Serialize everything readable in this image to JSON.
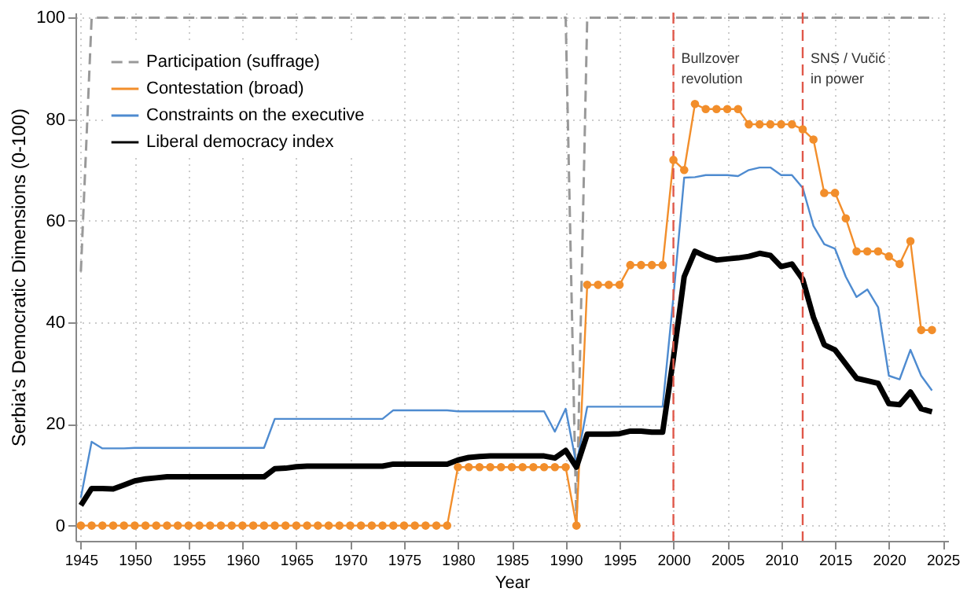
{
  "chart_data": {
    "type": "line",
    "xlabel": "Year",
    "ylabel": "Serbia's Democratic Dimensions (0-100)",
    "x": [
      1945,
      1946,
      1947,
      1948,
      1949,
      1950,
      1951,
      1952,
      1953,
      1954,
      1955,
      1956,
      1957,
      1958,
      1959,
      1960,
      1961,
      1962,
      1963,
      1964,
      1965,
      1966,
      1967,
      1968,
      1969,
      1970,
      1971,
      1972,
      1973,
      1974,
      1975,
      1976,
      1977,
      1978,
      1979,
      1980,
      1981,
      1982,
      1983,
      1984,
      1985,
      1986,
      1987,
      1988,
      1989,
      1990,
      1991,
      1992,
      1993,
      1994,
      1995,
      1996,
      1997,
      1998,
      1999,
      2000,
      2001,
      2002,
      2003,
      2004,
      2005,
      2006,
      2007,
      2008,
      2009,
      2010,
      2011,
      2012,
      2013,
      2014,
      2015,
      2016,
      2017,
      2018,
      2019,
      2020,
      2021,
      2022,
      2023,
      2024
    ],
    "series": [
      {
        "name": "Participation (suffrage)",
        "color": "#999999",
        "line_style": "dashed",
        "marker": "none",
        "values": [
          50,
          100,
          100,
          100,
          100,
          100,
          100,
          100,
          100,
          100,
          100,
          100,
          100,
          100,
          100,
          100,
          100,
          100,
          100,
          100,
          100,
          100,
          100,
          100,
          100,
          100,
          100,
          100,
          100,
          100,
          100,
          100,
          100,
          100,
          100,
          100,
          100,
          100,
          100,
          100,
          100,
          100,
          100,
          100,
          100,
          100,
          0,
          100,
          100,
          100,
          100,
          100,
          100,
          100,
          100,
          100,
          100,
          100,
          100,
          100,
          100,
          100,
          100,
          100,
          100,
          100,
          100,
          100,
          100,
          100,
          100,
          100,
          100,
          100,
          100,
          100,
          100,
          100,
          100,
          100
        ]
      },
      {
        "name": "Contestation (broad)",
        "color": "#f28e2b",
        "line_style": "solid",
        "marker": "circle",
        "values": [
          0,
          0,
          0,
          0,
          0,
          0,
          0,
          0,
          0,
          0,
          0,
          0,
          0,
          0,
          0,
          0,
          0,
          0,
          0,
          0,
          0,
          0,
          0,
          0,
          0,
          0,
          0,
          0,
          0,
          0,
          0,
          0,
          0,
          0,
          0,
          11.5,
          11.5,
          11.5,
          11.5,
          11.5,
          11.5,
          11.5,
          11.5,
          11.5,
          11.5,
          11.5,
          0,
          47.4,
          47.4,
          47.4,
          47.4,
          51.3,
          51.3,
          51.3,
          51.3,
          72,
          70,
          83,
          82,
          82,
          82,
          82,
          79,
          79,
          79,
          79,
          79,
          78,
          76,
          65.5,
          65.5,
          60.5,
          54,
          54,
          54,
          53,
          51.5,
          56,
          38.5,
          38.5
        ]
      },
      {
        "name": "Constraints on the executive",
        "color": "#4e8bd0",
        "line_style": "solid",
        "marker": "none",
        "values": [
          5.5,
          16.5,
          15.2,
          15.2,
          15.2,
          15.3,
          15.3,
          15.3,
          15.3,
          15.3,
          15.3,
          15.3,
          15.3,
          15.3,
          15.3,
          15.3,
          15.3,
          15.3,
          21,
          21,
          21,
          21,
          21,
          21,
          21,
          21,
          21,
          21,
          21,
          22.7,
          22.7,
          22.7,
          22.7,
          22.7,
          22.7,
          22.5,
          22.5,
          22.5,
          22.5,
          22.5,
          22.5,
          22.5,
          22.5,
          22.5,
          18.5,
          23,
          12,
          23.4,
          23.4,
          23.4,
          23.4,
          23.4,
          23.4,
          23.4,
          23.4,
          45,
          68.5,
          68.6,
          69,
          69,
          69,
          68.8,
          70,
          70.5,
          70.5,
          69,
          69,
          66.5,
          59,
          55.4,
          54.5,
          49,
          45,
          46.5,
          43,
          29.5,
          28.8,
          34.6,
          29.5,
          26.6
        ]
      },
      {
        "name": "Liberal democracy index",
        "color": "#000000",
        "line_style": "solid",
        "marker": "none",
        "values": [
          4,
          7.3,
          7.3,
          7.2,
          8,
          8.8,
          9.2,
          9.4,
          9.6,
          9.6,
          9.6,
          9.6,
          9.6,
          9.6,
          9.6,
          9.6,
          9.6,
          9.6,
          11.2,
          11.3,
          11.6,
          11.7,
          11.7,
          11.7,
          11.7,
          11.7,
          11.7,
          11.7,
          11.7,
          12.1,
          12.1,
          12.1,
          12.1,
          12.1,
          12.1,
          12.9,
          13.4,
          13.6,
          13.7,
          13.7,
          13.7,
          13.7,
          13.7,
          13.7,
          13.3,
          14.8,
          11.5,
          18,
          18,
          18,
          18.1,
          18.6,
          18.6,
          18.4,
          18.4,
          33,
          49,
          54,
          53,
          52.3,
          52.5,
          52.7,
          53,
          53.6,
          53.2,
          51,
          51.5,
          48.5,
          41,
          35.6,
          34.6,
          31.8,
          29,
          28.5,
          28,
          24,
          23.8,
          26.3,
          23,
          22.4
        ]
      }
    ],
    "ref_lines": [
      {
        "axis": "x",
        "value": 2000,
        "label": "Bullzover\nrevolution",
        "color": "#e0584a",
        "line_style": "dashed"
      },
      {
        "axis": "x",
        "value": 2012,
        "label": "SNS / Vučić\nin power",
        "color": "#e0584a",
        "line_style": "dashed"
      }
    ],
    "xlim": [
      1944.5,
      2025.5
    ],
    "xticks": [
      1945,
      1950,
      1955,
      1960,
      1965,
      1970,
      1975,
      1980,
      1985,
      1990,
      1995,
      2000,
      2005,
      2010,
      2015,
      2020,
      2025
    ],
    "ylim": [
      -3,
      101
    ],
    "yticks": [
      0,
      20,
      40,
      60,
      80,
      100
    ],
    "grid": true,
    "legend": "top left"
  }
}
